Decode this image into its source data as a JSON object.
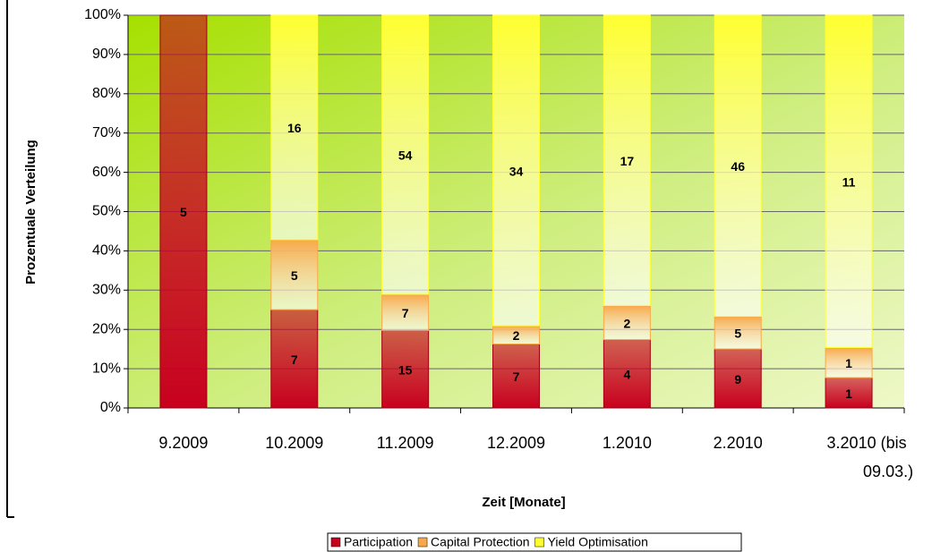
{
  "chart_data": {
    "type": "bar",
    "stacking": "percent",
    "x_label": "Zeit [Monate]",
    "y_label": "Prozentuale Verteilung",
    "categories": [
      "9.2009",
      "10.2009",
      "11.2009",
      "12.2009",
      "1.2010",
      "2.2010",
      "3.2010 (bis 09.03.)"
    ],
    "series": [
      {
        "name": "Participation",
        "color": "#c8001e",
        "values": [
          5,
          7,
          15,
          7,
          4,
          9,
          1
        ]
      },
      {
        "name": "Capital Protection",
        "color": "#f8a848",
        "values": [
          0,
          5,
          7,
          2,
          2,
          5,
          1
        ]
      },
      {
        "name": "Yield Optimisation",
        "color": "#ffff30",
        "values": [
          0,
          16,
          54,
          34,
          17,
          46,
          11
        ]
      }
    ],
    "ylim": [
      0,
      100
    ],
    "yticks": [
      {
        "value": 0,
        "label": "0%"
      },
      {
        "value": 10,
        "label": "10%"
      },
      {
        "value": 20,
        "label": "20%"
      },
      {
        "value": 30,
        "label": "30%"
      },
      {
        "value": 40,
        "label": "40%"
      },
      {
        "value": 50,
        "label": "50%"
      },
      {
        "value": 60,
        "label": "60%"
      },
      {
        "value": 70,
        "label": "70%"
      },
      {
        "value": 80,
        "label": "80%"
      },
      {
        "value": 90,
        "label": "90%"
      },
      {
        "value": 100,
        "label": "100%"
      }
    ],
    "grid": true,
    "legend": "bottom"
  }
}
